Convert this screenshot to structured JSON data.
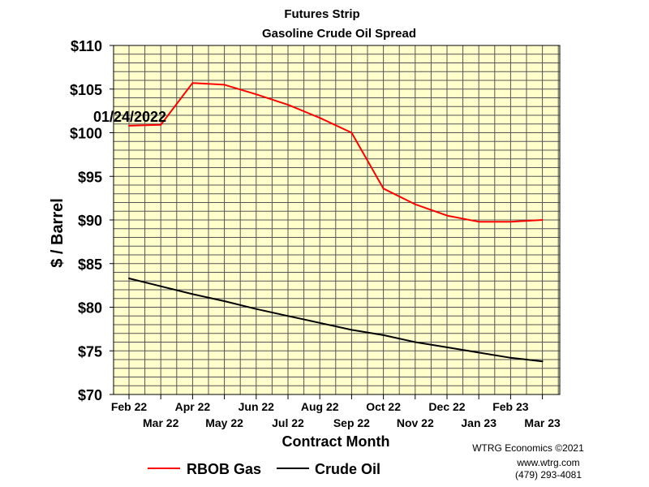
{
  "chart_data": {
    "type": "line",
    "title": "Futures Strip",
    "subtitle": "Gasoline Crude Oil Spread",
    "xlabel": "Contract Month",
    "ylabel": "$ / Barrel",
    "annotation": "01/24/2022",
    "ylim": [
      70,
      110
    ],
    "yticks": [
      "$70",
      "$75",
      "$80",
      "$85",
      "$90",
      "$95",
      "$100",
      "$105",
      "$110"
    ],
    "categories": [
      "Feb 22",
      "Mar 22",
      "Apr 22",
      "May 22",
      "Jun 22",
      "Jul 22",
      "Aug 22",
      "Sep 22",
      "Oct 22",
      "Nov 22",
      "Dec 22",
      "Jan 23",
      "Feb 23",
      "Mar 23"
    ],
    "grid": true,
    "plot_background": "#FFFFCC",
    "legend_position": "bottom",
    "series": [
      {
        "name": "RBOB Gas",
        "color": "#FF0000",
        "values": [
          100.8,
          100.9,
          105.7,
          105.5,
          104.4,
          103.2,
          101.7,
          100.0,
          93.6,
          91.8,
          90.5,
          89.8,
          89.8,
          90.0
        ]
      },
      {
        "name": "Crude Oil",
        "color": "#000000",
        "values": [
          83.3,
          82.4,
          81.5,
          80.7,
          79.8,
          79.0,
          78.2,
          77.4,
          76.8,
          76.0,
          75.4,
          74.8,
          74.2,
          73.8
        ]
      }
    ]
  },
  "credit": {
    "line1": "WTRG Economics ©2021",
    "line2": "www.wtrg.com",
    "line3": "(479) 293-4081"
  }
}
